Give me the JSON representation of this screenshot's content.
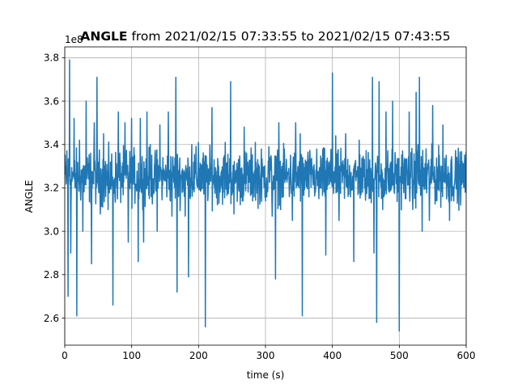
{
  "chart_data": {
    "type": "line",
    "title_bold": "ANGLE",
    "title_rest": " from 2021/02/15 07:33:55 to 2021/02/15 07:43:55",
    "xlabel": "time (s)",
    "ylabel": "ANGLE",
    "y_offset_label": "1e8",
    "xlim": [
      0,
      600
    ],
    "ylim": [
      2.475,
      3.85
    ],
    "x_ticks": [
      0,
      100,
      200,
      300,
      400,
      500,
      600
    ],
    "y_ticks": [
      2.6,
      2.8,
      3.0,
      3.2,
      3.4,
      3.6,
      3.8
    ],
    "x_tick_labels": [
      "0",
      "100",
      "200",
      "300",
      "400",
      "500",
      "600"
    ],
    "y_tick_labels": [
      "2.6",
      "2.8",
      "3.0",
      "3.2",
      "3.4",
      "3.6",
      "3.8"
    ],
    "grid": true,
    "series": [
      {
        "color": "#1f77b4",
        "x_start": 0,
        "x_end": 600,
        "baseline": 3.25,
        "noise_amplitude": 0.15,
        "extremes": [
          [
            3,
            3.37
          ],
          [
            5,
            2.7
          ],
          [
            7,
            3.79
          ],
          [
            9,
            2.9
          ],
          [
            14,
            3.52
          ],
          [
            18,
            2.61
          ],
          [
            22,
            3.42
          ],
          [
            27,
            3.0
          ],
          [
            32,
            3.6
          ],
          [
            40,
            2.85
          ],
          [
            44,
            3.5
          ],
          [
            48,
            3.71
          ],
          [
            53,
            3.08
          ],
          [
            58,
            3.45
          ],
          [
            65,
            3.1
          ],
          [
            72,
            2.66
          ],
          [
            80,
            3.55
          ],
          [
            90,
            3.5
          ],
          [
            95,
            2.95
          ],
          [
            100,
            3.52
          ],
          [
            110,
            2.86
          ],
          [
            113,
            3.52
          ],
          [
            118,
            2.95
          ],
          [
            123,
            3.55
          ],
          [
            128,
            3.4
          ],
          [
            138,
            3.0
          ],
          [
            142,
            3.49
          ],
          [
            155,
            3.55
          ],
          [
            160,
            3.07
          ],
          [
            166,
            3.71
          ],
          [
            168,
            2.72
          ],
          [
            180,
            3.07
          ],
          [
            185,
            2.79
          ],
          [
            190,
            3.4
          ],
          [
            200,
            3.41
          ],
          [
            205,
            3.2
          ],
          [
            210,
            2.56
          ],
          [
            220,
            3.57
          ],
          [
            230,
            3.3
          ],
          [
            240,
            3.41
          ],
          [
            248,
            3.69
          ],
          [
            253,
            3.08
          ],
          [
            260,
            3.2
          ],
          [
            268,
            3.48
          ],
          [
            275,
            3.3
          ],
          [
            285,
            3.41
          ],
          [
            292,
            3.15
          ],
          [
            305,
            3.39
          ],
          [
            310,
            3.07
          ],
          [
            315,
            2.78
          ],
          [
            320,
            3.5
          ],
          [
            328,
            3.38
          ],
          [
            335,
            3.29
          ],
          [
            340,
            3.05
          ],
          [
            345,
            3.5
          ],
          [
            352,
            3.45
          ],
          [
            355,
            2.61
          ],
          [
            362,
            3.27
          ],
          [
            370,
            3.3
          ],
          [
            380,
            3.15
          ],
          [
            390,
            2.89
          ],
          [
            396,
            3.22
          ],
          [
            400,
            3.73
          ],
          [
            405,
            3.44
          ],
          [
            410,
            3.05
          ],
          [
            420,
            3.45
          ],
          [
            425,
            3.25
          ],
          [
            432,
            2.86
          ],
          [
            440,
            3.42
          ],
          [
            448,
            3.2
          ],
          [
            455,
            3.15
          ],
          [
            460,
            3.71
          ],
          [
            462,
            2.9
          ],
          [
            466,
            2.58
          ],
          [
            470,
            3.69
          ],
          [
            475,
            3.1
          ],
          [
            480,
            3.55
          ],
          [
            485,
            3.18
          ],
          [
            490,
            3.6
          ],
          [
            495,
            3.3
          ],
          [
            500,
            2.54
          ],
          [
            505,
            3.37
          ],
          [
            510,
            3.15
          ],
          [
            515,
            3.55
          ],
          [
            520,
            3.1
          ],
          [
            525,
            3.64
          ],
          [
            528,
            3.4
          ],
          [
            530,
            3.71
          ],
          [
            534,
            3.0
          ],
          [
            540,
            3.38
          ],
          [
            545,
            3.05
          ],
          [
            550,
            3.58
          ],
          [
            555,
            3.14
          ],
          [
            560,
            3.35
          ],
          [
            565,
            3.49
          ],
          [
            570,
            3.35
          ],
          [
            575,
            3.05
          ]
        ]
      }
    ]
  }
}
